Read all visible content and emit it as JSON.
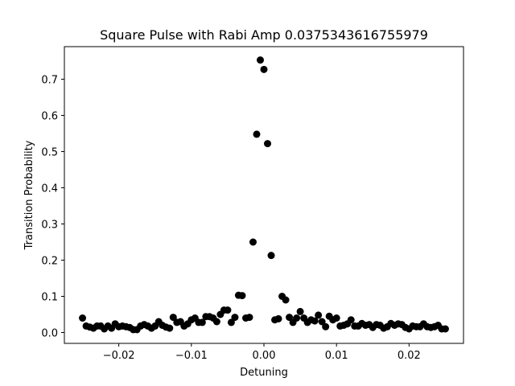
{
  "chart_data": {
    "type": "scatter",
    "title": "Square Pulse with Rabi Amp 0.0375343616755979",
    "xlabel": "Detuning",
    "ylabel": "Transition Probability",
    "xlim": [
      -0.0275,
      0.0275
    ],
    "ylim": [
      -0.03,
      0.79
    ],
    "xticks": [
      -0.02,
      -0.01,
      0.0,
      0.01,
      0.02
    ],
    "xtick_labels": [
      "−0.02",
      "−0.01",
      "0.00",
      "0.01",
      "0.02"
    ],
    "yticks": [
      0.0,
      0.1,
      0.2,
      0.3,
      0.4,
      0.5,
      0.6,
      0.7
    ],
    "ytick_labels": [
      "0.0",
      "0.1",
      "0.2",
      "0.3",
      "0.4",
      "0.5",
      "0.6",
      "0.7"
    ],
    "grid": false,
    "marker_color": "#000000",
    "series": [
      {
        "x": [
          -0.025,
          -0.0245,
          -0.024,
          -0.0235,
          -0.023,
          -0.0225,
          -0.022,
          -0.0215,
          -0.021,
          -0.0205,
          -0.02,
          -0.0195,
          -0.019,
          -0.0185,
          -0.018,
          -0.0175,
          -0.017,
          -0.0165,
          -0.016,
          -0.0155,
          -0.015,
          -0.0145,
          -0.014,
          -0.0135,
          -0.013,
          -0.0125,
          -0.012,
          -0.0115,
          -0.011,
          -0.0105,
          -0.01,
          -0.0095,
          -0.009,
          -0.0085,
          -0.008,
          -0.0075,
          -0.007,
          -0.0065,
          -0.006,
          -0.0055,
          -0.005,
          -0.0045,
          -0.004,
          -0.0035,
          -0.003,
          -0.0025,
          -0.002,
          -0.0015,
          -0.001,
          -0.0005,
          0.0,
          0.0005,
          0.001,
          0.0015,
          0.002,
          0.0025,
          0.003,
          0.0035,
          0.004,
          0.0045,
          0.005,
          0.0055,
          0.006,
          0.0065,
          0.007,
          0.0075,
          0.008,
          0.0085,
          0.009,
          0.0095,
          0.01,
          0.0105,
          0.011,
          0.0115,
          0.012,
          0.0125,
          0.013,
          0.0135,
          0.014,
          0.0145,
          0.015,
          0.0155,
          0.016,
          0.0165,
          0.017,
          0.0175,
          0.018,
          0.0185,
          0.019,
          0.0195,
          0.02,
          0.0205,
          0.021,
          0.0215,
          0.022,
          0.0225,
          0.023,
          0.0235,
          0.024,
          0.0245,
          0.025
        ],
        "y": [
          0.04,
          0.018,
          0.015,
          0.012,
          0.018,
          0.018,
          0.01,
          0.018,
          0.012,
          0.024,
          0.016,
          0.018,
          0.016,
          0.014,
          0.008,
          0.008,
          0.018,
          0.022,
          0.018,
          0.012,
          0.018,
          0.03,
          0.02,
          0.015,
          0.012,
          0.042,
          0.028,
          0.03,
          0.018,
          0.024,
          0.035,
          0.04,
          0.028,
          0.028,
          0.044,
          0.044,
          0.04,
          0.03,
          0.05,
          0.062,
          0.062,
          0.028,
          0.042,
          0.103,
          0.102,
          0.04,
          0.042,
          0.25,
          0.548,
          0.753,
          0.727,
          0.522,
          0.213,
          0.035,
          0.038,
          0.1,
          0.09,
          0.042,
          0.028,
          0.04,
          0.058,
          0.04,
          0.028,
          0.035,
          0.032,
          0.048,
          0.03,
          0.016,
          0.045,
          0.035,
          0.04,
          0.018,
          0.02,
          0.024,
          0.035,
          0.018,
          0.018,
          0.025,
          0.02,
          0.022,
          0.014,
          0.022,
          0.02,
          0.012,
          0.016,
          0.025,
          0.02,
          0.024,
          0.022,
          0.014,
          0.01,
          0.018,
          0.016,
          0.016,
          0.024,
          0.016,
          0.014,
          0.016,
          0.02,
          0.01,
          0.01
        ]
      }
    ]
  }
}
